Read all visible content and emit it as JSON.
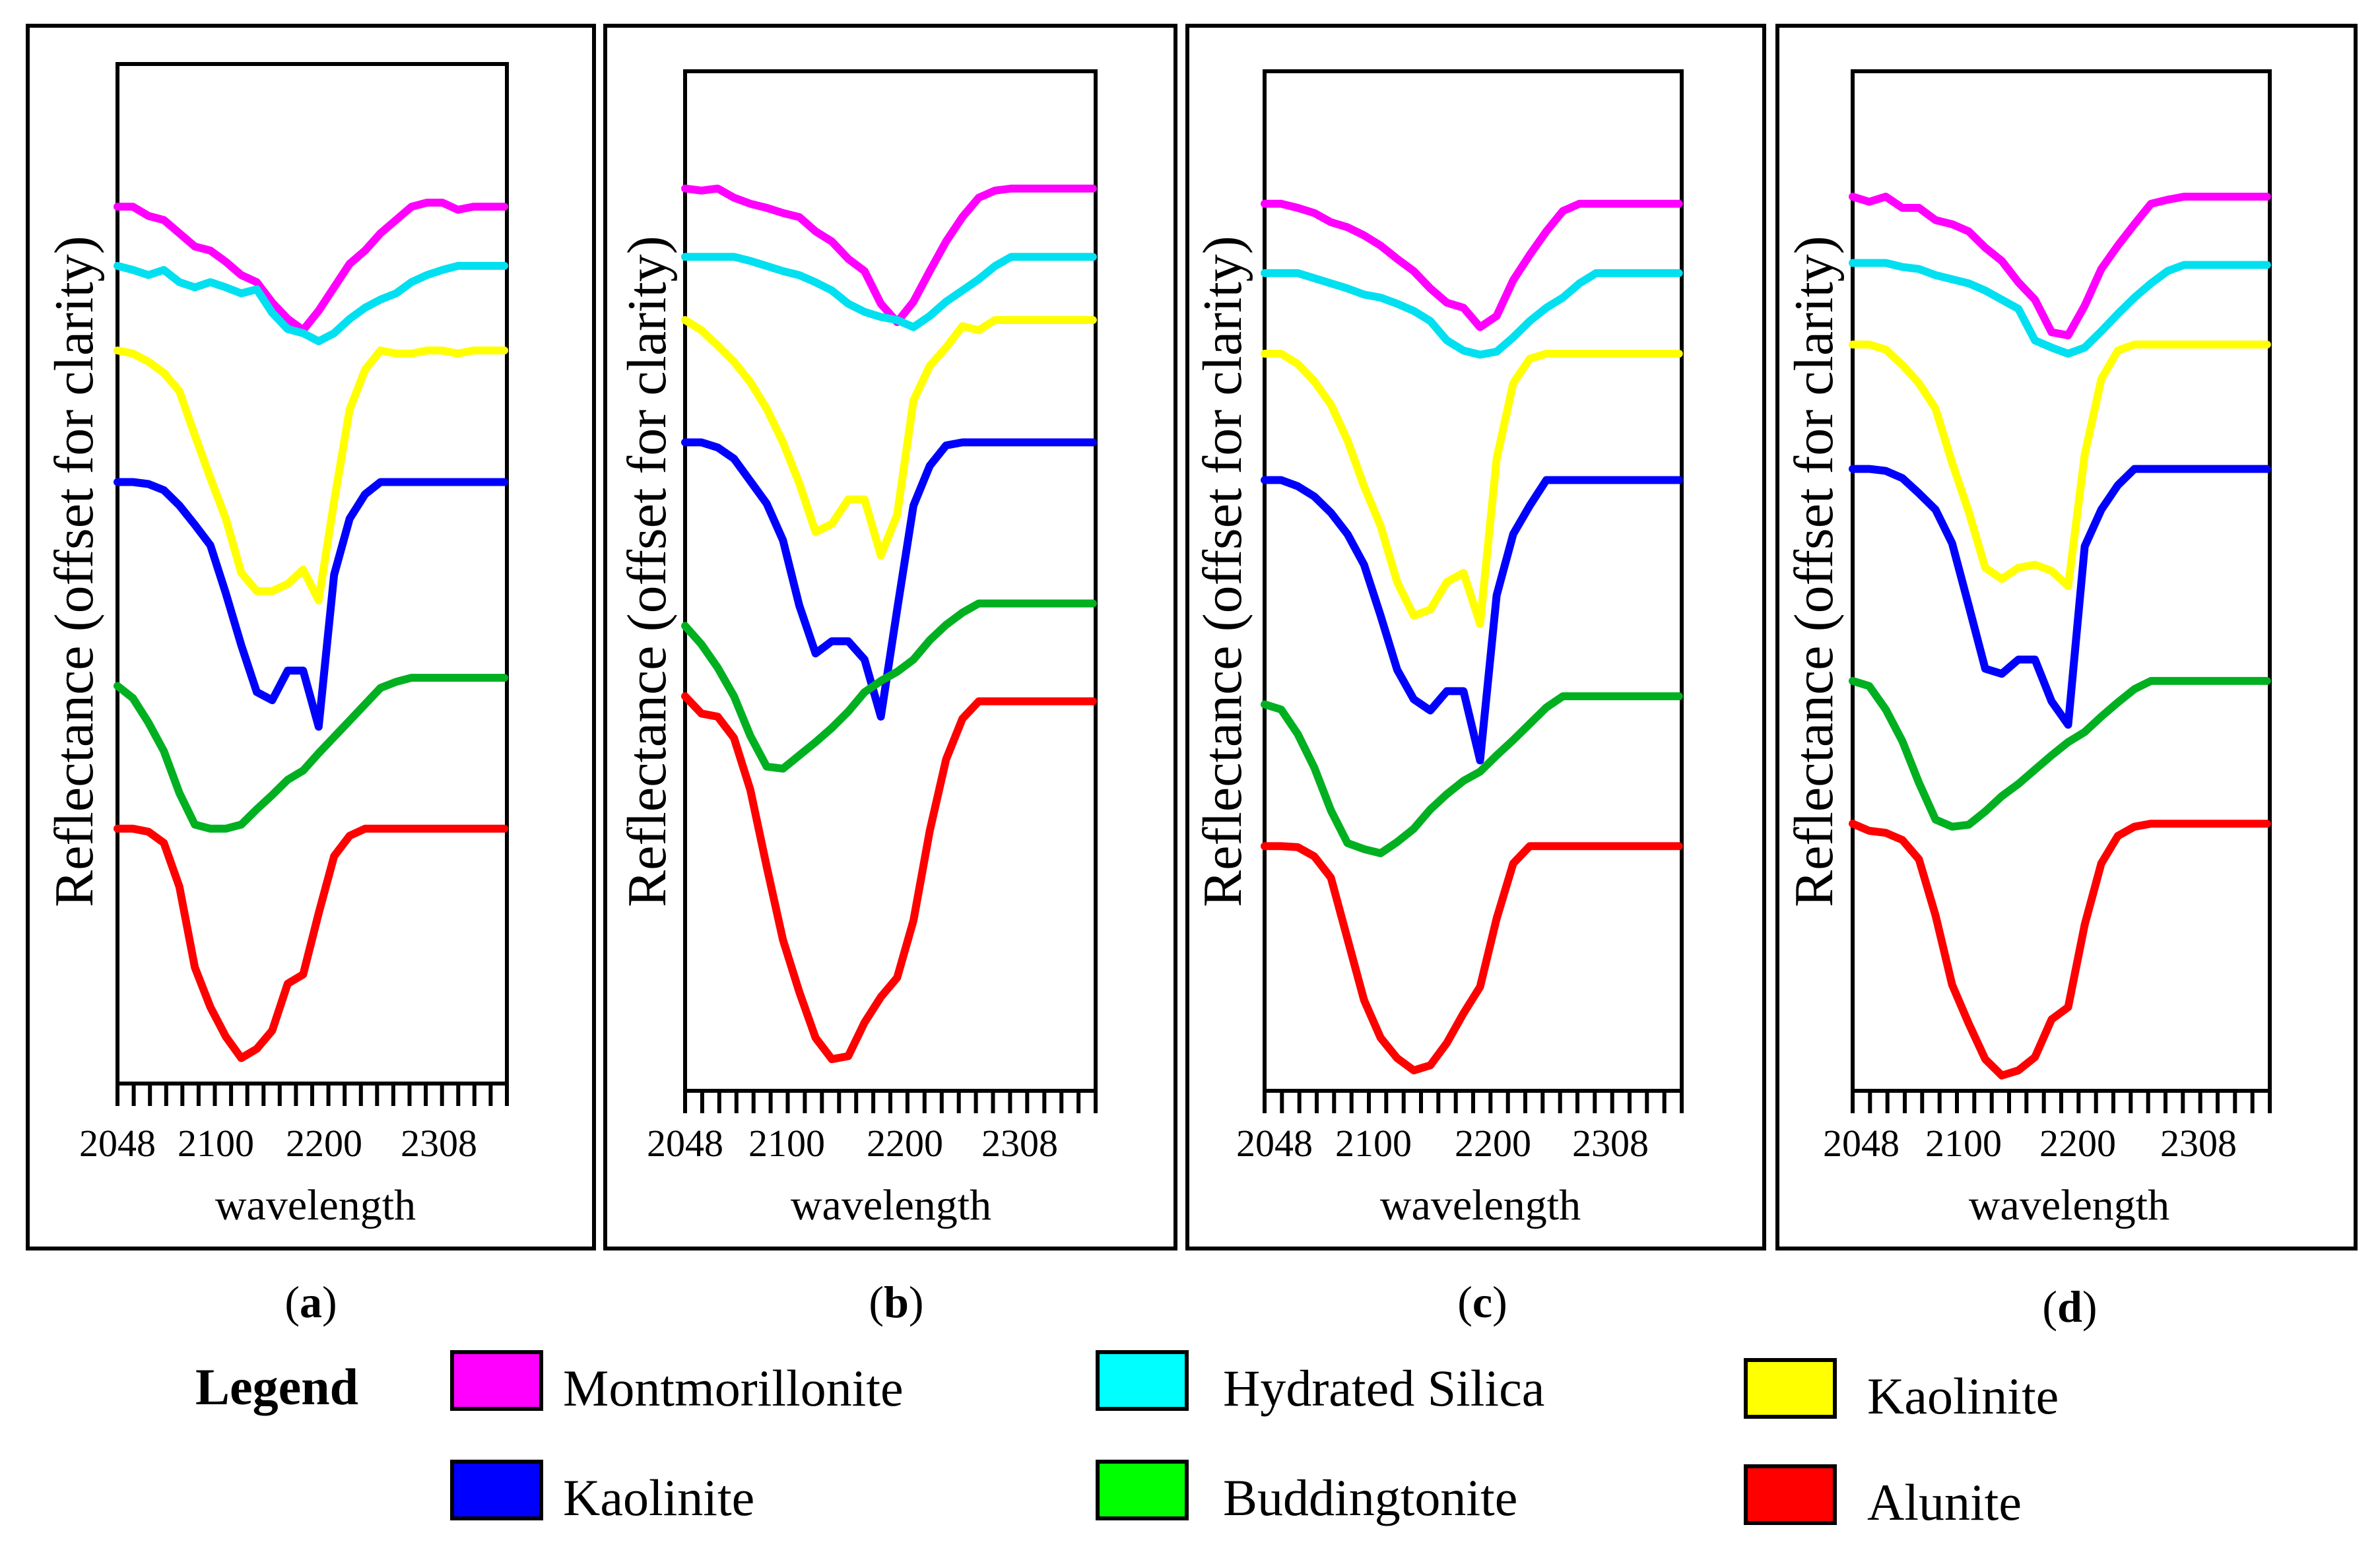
{
  "chart_data": [
    {
      "type": "line",
      "panel": "a",
      "panel_label_letter": "a",
      "xlabel": "wavelength",
      "ylabel": "Reflectance (offset for clarity)",
      "xlim": [
        2048,
        2350
      ],
      "x_tick_labels": [
        "2048",
        "2100",
        "2200",
        "2308"
      ],
      "x_tick_values": [
        2048,
        2100,
        2200,
        2308
      ],
      "ylim": [
        0,
        100
      ],
      "x": [
        2048,
        2060,
        2072,
        2084,
        2096,
        2108,
        2120,
        2132,
        2144,
        2156,
        2168,
        2180,
        2192,
        2204,
        2216,
        2228,
        2240,
        2252,
        2264,
        2276,
        2288,
        2300,
        2312,
        2324,
        2336,
        2348
      ],
      "series": [
        {
          "name": "Montmorillonite",
          "color": "#ff00ff",
          "values": [
            86.0,
            86.0,
            85.1,
            84.7,
            83.4,
            82.1,
            81.7,
            80.6,
            79.3,
            78.6,
            76.6,
            75.0,
            73.9,
            75.8,
            78.1,
            80.4,
            81.7,
            83.4,
            84.7,
            86.0,
            86.4,
            86.4,
            85.7,
            86.0,
            86.0,
            86.0
          ]
        },
        {
          "name": "Hydrated Silica",
          "color": "#00e0f0",
          "values": [
            80.2,
            79.8,
            79.3,
            79.8,
            78.6,
            78.1,
            78.6,
            78.1,
            77.5,
            77.9,
            75.6,
            74.0,
            73.6,
            72.8,
            73.6,
            75.0,
            76.1,
            76.9,
            77.5,
            78.6,
            79.3,
            79.8,
            80.2,
            80.2,
            80.2,
            80.2
          ]
        },
        {
          "name": "Kaolinite (yellow)",
          "color": "#ffff00",
          "values": [
            71.9,
            71.6,
            70.8,
            69.7,
            67.9,
            63.6,
            59.4,
            55.4,
            50.1,
            48.3,
            48.3,
            49.0,
            50.4,
            47.4,
            57.1,
            66.1,
            70.0,
            71.9,
            71.6,
            71.6,
            71.9,
            71.9,
            71.6,
            71.9,
            71.9,
            71.9
          ]
        },
        {
          "name": "Kaolinite (blue)",
          "color": "#0000ff",
          "values": [
            59.0,
            59.0,
            58.8,
            58.2,
            56.7,
            54.8,
            52.8,
            48.1,
            43.0,
            38.4,
            37.6,
            40.5,
            40.5,
            35.0,
            49.9,
            55.4,
            57.8,
            59.0,
            59.0,
            59.0,
            59.0,
            59.0,
            59.0,
            59.0,
            59.0,
            59.0
          ]
        },
        {
          "name": "Buddingtonite",
          "color": "#00b020",
          "values": [
            39.0,
            37.8,
            35.4,
            32.6,
            28.5,
            25.4,
            25.0,
            25.0,
            25.4,
            26.9,
            28.3,
            29.8,
            30.7,
            32.4,
            34.0,
            35.6,
            37.2,
            38.8,
            39.4,
            39.8,
            39.8,
            39.8,
            39.8,
            39.8,
            39.8,
            39.8
          ]
        },
        {
          "name": "Alunite",
          "color": "#ff0000",
          "values": [
            25.0,
            25.0,
            24.7,
            23.6,
            19.3,
            11.4,
            7.5,
            4.6,
            2.5,
            3.4,
            5.2,
            9.8,
            10.7,
            16.7,
            22.3,
            24.3,
            25.0,
            25.0,
            25.0,
            25.0,
            25.0,
            25.0,
            25.0,
            25.0,
            25.0,
            25.0
          ]
        }
      ]
    },
    {
      "type": "line",
      "panel": "b",
      "panel_label_letter": "b",
      "xlabel": "wavelength",
      "ylabel": "Reflectance (offset for clarity)",
      "xlim": [
        2048,
        2350
      ],
      "x_tick_labels": [
        "2048",
        "2100",
        "2200",
        "2308"
      ],
      "x_tick_values": [
        2048,
        2100,
        2200,
        2308
      ],
      "ylim": [
        0,
        100
      ],
      "x": [
        2048,
        2060,
        2072,
        2084,
        2096,
        2108,
        2120,
        2132,
        2144,
        2156,
        2168,
        2180,
        2192,
        2204,
        2216,
        2228,
        2240,
        2252,
        2264,
        2276,
        2288,
        2300,
        2312,
        2324,
        2336,
        2348
      ],
      "series": [
        {
          "name": "Montmorillonite",
          "color": "#ff00ff",
          "values": [
            88.5,
            88.3,
            88.5,
            87.6,
            87.0,
            86.6,
            86.1,
            85.7,
            84.3,
            83.3,
            81.6,
            80.4,
            77.2,
            75.4,
            77.4,
            80.4,
            83.3,
            85.7,
            87.6,
            88.3,
            88.5,
            88.5,
            88.5,
            88.5,
            88.5,
            88.5
          ]
        },
        {
          "name": "Hydrated Silica",
          "color": "#00e0f0",
          "values": [
            81.8,
            81.8,
            81.8,
            81.8,
            81.4,
            80.9,
            80.4,
            80.0,
            79.3,
            78.5,
            77.2,
            76.4,
            75.9,
            75.6,
            74.9,
            76.0,
            77.4,
            78.5,
            79.6,
            80.9,
            81.8,
            81.8,
            81.8,
            81.8,
            81.8,
            81.8
          ]
        },
        {
          "name": "Kaolinite (yellow)",
          "color": "#ffff00",
          "values": [
            75.6,
            74.6,
            73.1,
            71.5,
            69.5,
            66.9,
            63.6,
            59.6,
            54.8,
            55.6,
            58.0,
            58.0,
            52.5,
            56.5,
            67.7,
            71.1,
            72.9,
            75.0,
            74.6,
            75.6,
            75.6,
            75.6,
            75.6,
            75.6,
            75.6,
            75.6
          ]
        },
        {
          "name": "Kaolinite (blue)",
          "color": "#0000ff",
          "values": [
            63.6,
            63.6,
            63.1,
            62.0,
            59.8,
            57.6,
            54.0,
            47.6,
            42.9,
            44.1,
            44.1,
            42.3,
            36.7,
            47.2,
            57.4,
            61.3,
            63.3,
            63.6,
            63.6,
            63.6,
            63.6,
            63.6,
            63.6,
            63.6,
            63.6,
            63.6
          ]
        },
        {
          "name": "Buddingtonite",
          "color": "#00b020",
          "values": [
            45.6,
            43.8,
            41.5,
            38.7,
            34.8,
            31.8,
            31.6,
            32.9,
            34.2,
            35.6,
            37.2,
            39.1,
            40.2,
            41.1,
            42.3,
            44.2,
            45.7,
            46.9,
            47.8,
            47.8,
            47.8,
            47.8,
            47.8,
            47.8,
            47.8,
            47.8
          ]
        },
        {
          "name": "Alunite",
          "color": "#ff0000",
          "values": [
            38.7,
            37.0,
            36.7,
            34.6,
            29.5,
            22.0,
            14.8,
            9.7,
            5.2,
            3.1,
            3.4,
            6.7,
            9.2,
            11.1,
            16.7,
            25.5,
            32.5,
            36.5,
            38.2,
            38.2,
            38.2,
            38.2,
            38.2,
            38.2,
            38.2,
            38.2
          ]
        }
      ]
    },
    {
      "type": "line",
      "panel": "c",
      "panel_label_letter": "c",
      "xlabel": "wavelength",
      "ylabel": "Reflectance (offset for clarity)",
      "xlim": [
        2048,
        2350
      ],
      "x_tick_labels": [
        "2048",
        "2100",
        "2200",
        "2308"
      ],
      "x_tick_values": [
        2048,
        2100,
        2200,
        2308
      ],
      "ylim": [
        0,
        100
      ],
      "x": [
        2048,
        2060,
        2072,
        2084,
        2096,
        2108,
        2120,
        2132,
        2144,
        2156,
        2168,
        2180,
        2192,
        2204,
        2216,
        2228,
        2240,
        2252,
        2264,
        2276,
        2288,
        2300,
        2312,
        2324,
        2336,
        2348
      ],
      "series": [
        {
          "name": "Montmorillonite",
          "color": "#ff00ff",
          "values": [
            87.0,
            87.0,
            86.6,
            86.1,
            85.2,
            84.7,
            83.9,
            82.9,
            81.6,
            80.4,
            78.7,
            77.3,
            76.8,
            74.9,
            76.0,
            79.5,
            82.0,
            84.3,
            86.3,
            87.0,
            87.0,
            87.0,
            87.0,
            87.0,
            87.0,
            87.0
          ]
        },
        {
          "name": "Hydrated Silica",
          "color": "#00e0f0",
          "values": [
            80.2,
            80.2,
            80.2,
            79.7,
            79.2,
            78.7,
            78.1,
            77.8,
            77.2,
            76.5,
            75.5,
            73.6,
            72.6,
            72.2,
            72.5,
            73.9,
            75.5,
            76.8,
            77.8,
            79.2,
            80.2,
            80.2,
            80.2,
            80.2,
            80.2,
            80.2
          ]
        },
        {
          "name": "Kaolinite (yellow)",
          "color": "#ffff00",
          "values": [
            72.3,
            72.3,
            71.3,
            69.6,
            67.3,
            63.8,
            59.3,
            55.4,
            49.9,
            46.6,
            47.2,
            49.9,
            50.8,
            45.8,
            62.0,
            69.4,
            71.8,
            72.3,
            72.3,
            72.3,
            72.3,
            72.3,
            72.3,
            72.3,
            72.3,
            72.3
          ]
        },
        {
          "name": "Kaolinite (blue)",
          "color": "#0000ff",
          "values": [
            59.9,
            59.9,
            59.3,
            58.3,
            56.7,
            54.6,
            51.6,
            46.6,
            41.3,
            38.4,
            37.3,
            39.2,
            39.2,
            32.4,
            48.6,
            54.6,
            57.4,
            59.9,
            59.9,
            59.9,
            59.9,
            59.9,
            59.9,
            59.9,
            59.9,
            59.9
          ]
        },
        {
          "name": "Buddingtonite",
          "color": "#00b020",
          "values": [
            37.9,
            37.4,
            35.0,
            31.7,
            27.5,
            24.3,
            23.7,
            23.3,
            24.4,
            25.7,
            27.6,
            29.1,
            30.4,
            31.3,
            32.9,
            34.4,
            36.0,
            37.6,
            38.7,
            38.7,
            38.7,
            38.7,
            38.7,
            38.7,
            38.7,
            38.7
          ]
        },
        {
          "name": "Alunite",
          "color": "#ff0000",
          "values": [
            24.0,
            24.0,
            23.9,
            23.0,
            20.9,
            14.9,
            8.9,
            5.2,
            3.2,
            2.0,
            2.5,
            4.7,
            7.6,
            10.2,
            16.9,
            22.3,
            24.0,
            24.0,
            24.0,
            24.0,
            24.0,
            24.0,
            24.0,
            24.0,
            24.0,
            24.0
          ]
        }
      ]
    },
    {
      "type": "line",
      "panel": "d",
      "panel_label_letter": "d",
      "xlabel": "wavelength",
      "ylabel": "Reflectance (offset for clarity)",
      "xlim": [
        2048,
        2350
      ],
      "x_tick_labels": [
        "2048",
        "2100",
        "2200",
        "2308"
      ],
      "x_tick_values": [
        2048,
        2100,
        2200,
        2308
      ],
      "ylim": [
        0,
        100
      ],
      "x": [
        2048,
        2060,
        2072,
        2084,
        2096,
        2108,
        2120,
        2132,
        2144,
        2156,
        2168,
        2180,
        2192,
        2204,
        2216,
        2228,
        2240,
        2252,
        2264,
        2276,
        2288,
        2300,
        2312,
        2324,
        2336,
        2348
      ],
      "series": [
        {
          "name": "Montmorillonite",
          "color": "#ff00ff",
          "values": [
            87.7,
            87.2,
            87.7,
            86.6,
            86.6,
            85.4,
            85.0,
            84.3,
            82.7,
            81.4,
            79.3,
            77.6,
            74.4,
            74.1,
            77.0,
            80.6,
            82.9,
            85.0,
            87.0,
            87.4,
            87.7,
            87.7,
            87.7,
            87.7,
            87.7,
            87.7
          ]
        },
        {
          "name": "Hydrated Silica",
          "color": "#00e0f0",
          "values": [
            81.2,
            81.2,
            81.2,
            80.8,
            80.6,
            80.0,
            79.6,
            79.2,
            78.5,
            77.6,
            76.7,
            73.6,
            72.9,
            72.3,
            72.9,
            74.5,
            76.2,
            77.8,
            79.2,
            80.4,
            81.0,
            81.0,
            81.0,
            81.0,
            81.0,
            81.0
          ]
        },
        {
          "name": "Kaolinite (yellow)",
          "color": "#ffff00",
          "values": [
            73.2,
            73.2,
            72.7,
            71.2,
            69.4,
            66.9,
            61.6,
            56.8,
            51.3,
            50.2,
            51.3,
            51.6,
            51.0,
            49.5,
            62.4,
            69.8,
            72.6,
            73.2,
            73.2,
            73.2,
            73.2,
            73.2,
            73.2,
            73.2,
            73.2,
            73.2
          ]
        },
        {
          "name": "Kaolinite (blue)",
          "color": "#0000ff",
          "values": [
            61.0,
            61.0,
            60.8,
            60.1,
            58.6,
            57.0,
            53.7,
            47.6,
            41.4,
            40.9,
            42.3,
            42.3,
            38.2,
            35.9,
            53.4,
            57.0,
            59.4,
            61.0,
            61.0,
            61.0,
            61.0,
            61.0,
            61.0,
            61.0,
            61.0,
            61.0
          ]
        },
        {
          "name": "Buddingtonite",
          "color": "#00b020",
          "values": [
            40.2,
            39.7,
            37.4,
            34.3,
            30.2,
            26.6,
            25.9,
            26.1,
            27.4,
            28.9,
            30.1,
            31.5,
            32.9,
            34.2,
            35.2,
            36.7,
            38.1,
            39.4,
            40.2,
            40.2,
            40.2,
            40.2,
            40.2,
            40.2,
            40.2,
            40.2
          ]
        },
        {
          "name": "Alunite",
          "color": "#ff0000",
          "values": [
            26.2,
            25.5,
            25.3,
            24.6,
            22.7,
            17.2,
            10.4,
            6.6,
            3.1,
            1.5,
            2.0,
            3.3,
            7.0,
            8.2,
            16.3,
            22.3,
            25.0,
            25.9,
            26.2,
            26.2,
            26.2,
            26.2,
            26.2,
            26.2,
            26.2,
            26.2
          ]
        }
      ]
    }
  ],
  "legend": {
    "title": "Legend",
    "items": [
      {
        "label": "Montmorillonite",
        "color": "#ff00ff"
      },
      {
        "label": "Hydrated Silica",
        "color": "#00ffff"
      },
      {
        "label": "Kaolinite",
        "color": "#ffff00"
      },
      {
        "label": "Kaolinite",
        "color": "#0000ff"
      },
      {
        "label": "Buddingtonite",
        "color": "#00ff00"
      },
      {
        "label": "Alunite",
        "color": "#ff0000"
      }
    ]
  }
}
